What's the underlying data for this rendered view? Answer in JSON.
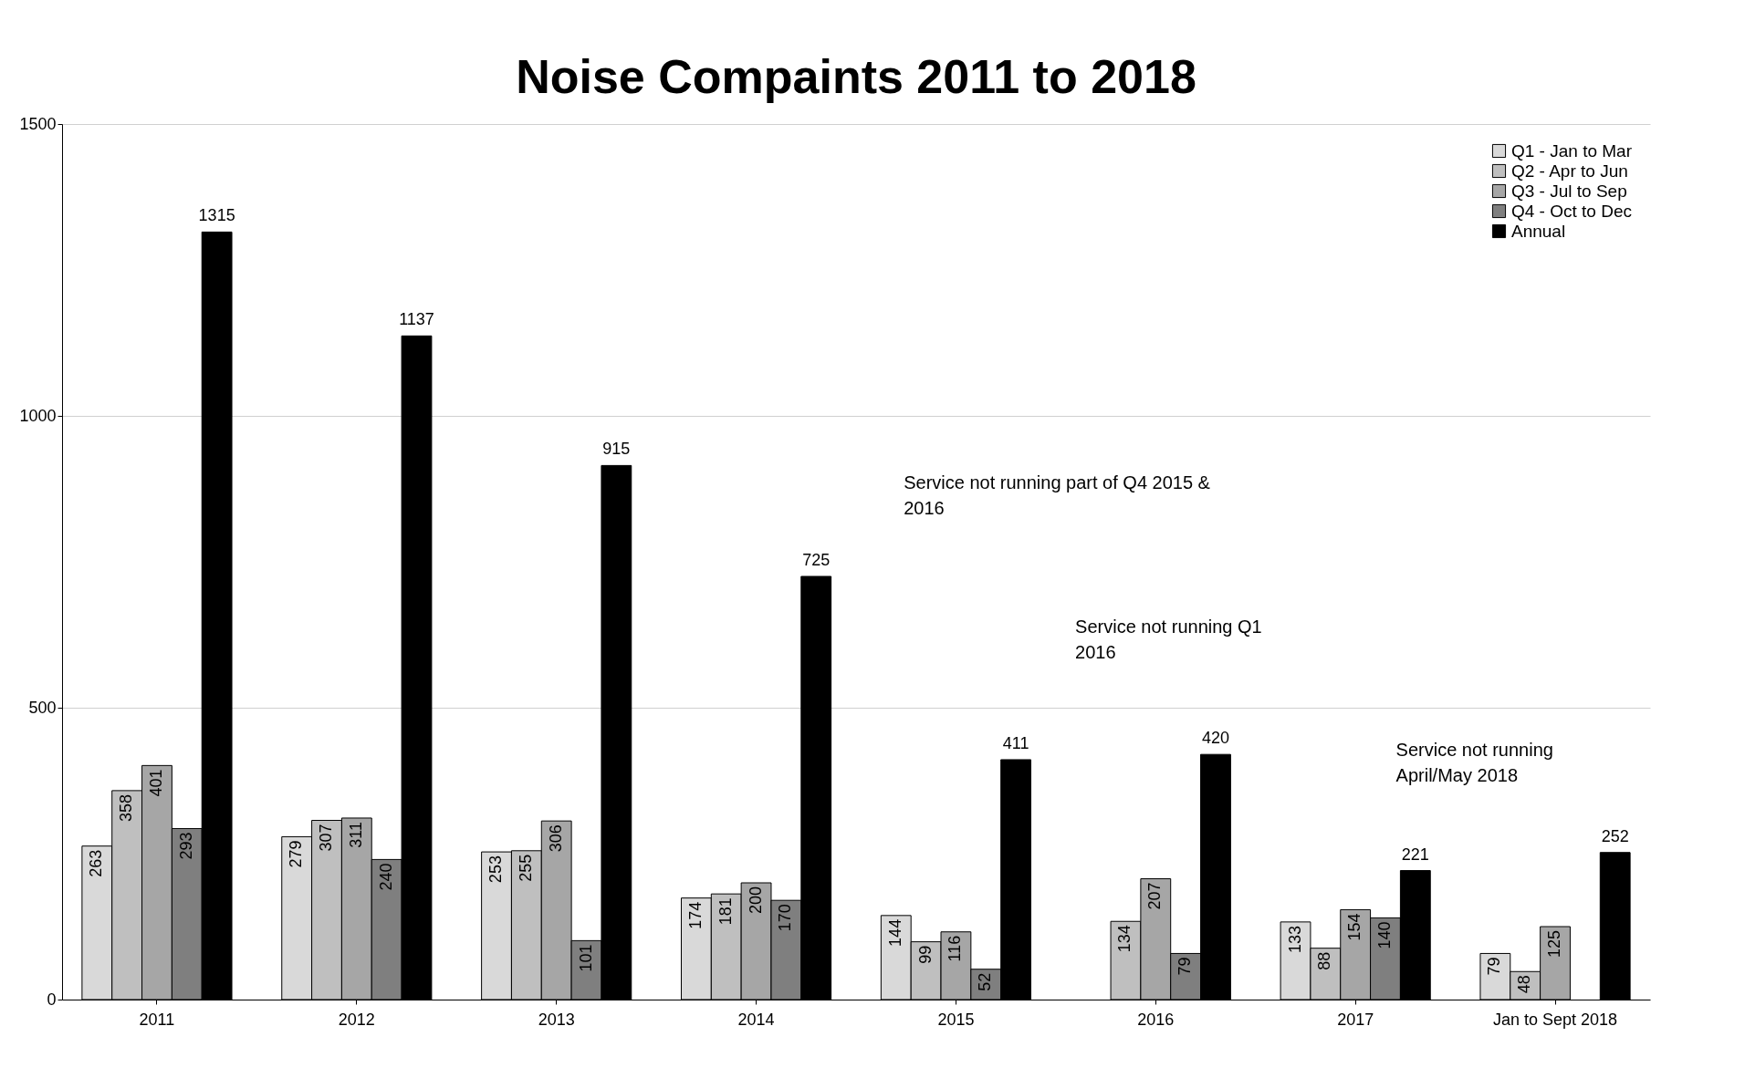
{
  "chart_data": {
    "type": "bar",
    "title": "Noise Compaints 2011 to 2018",
    "categories": [
      "2011",
      "2012",
      "2013",
      "2014",
      "2015",
      "2016",
      "2017",
      "Jan to Sept 2018"
    ],
    "series": [
      {
        "name": "Q1 - Jan to Mar",
        "color": "#d9d9d9",
        "values": [
          263,
          279,
          253,
          174,
          144,
          null,
          133,
          79
        ]
      },
      {
        "name": "Q2 - Apr to Jun",
        "color": "#bfbfbf",
        "values": [
          358,
          307,
          255,
          181,
          99,
          134,
          88,
          48
        ]
      },
      {
        "name": "Q3 - Jul to Sep",
        "color": "#a6a6a6",
        "values": [
          401,
          311,
          306,
          200,
          116,
          207,
          154,
          125
        ]
      },
      {
        "name": "Q4 - Oct to Dec",
        "color": "#7f7f7f",
        "values": [
          293,
          240,
          101,
          170,
          52,
          79,
          140,
          null
        ]
      },
      {
        "name": "Annual",
        "color": "#000000",
        "values": [
          1315,
          1137,
          915,
          725,
          411,
          420,
          221,
          252
        ]
      }
    ],
    "ylim": [
      0,
      1500
    ],
    "yticks": [
      0,
      500,
      {
        "value": 1000,
        "label": "1000"
      },
      {
        "value": 1500,
        "label": "1500"
      }
    ],
    "grid": "y",
    "legend": "top right",
    "data_labels": true,
    "annotations": [
      "Service not running part of Q4 2015 &\n2016",
      "Service not running Q1\n2016",
      "Service not running\nApril/May 2018"
    ]
  }
}
